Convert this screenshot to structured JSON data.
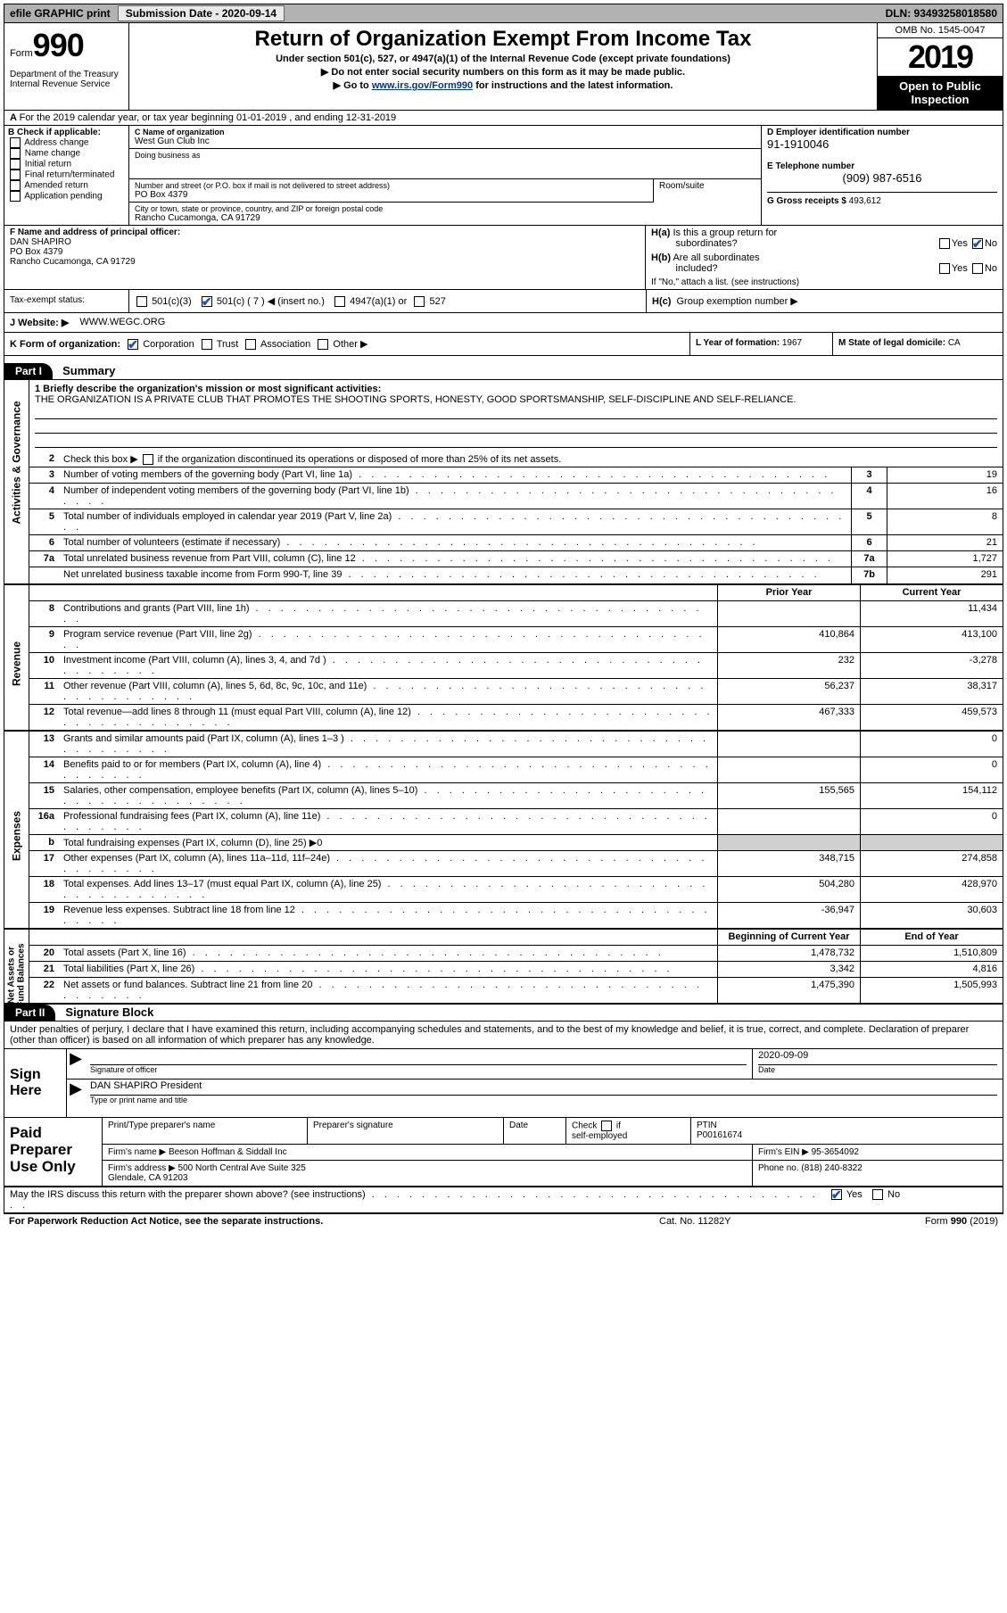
{
  "topbar": {
    "efile_label": "efile GRAPHIC print",
    "submission_label": "Submission Date - 2020-09-14",
    "dln_label": "DLN: 93493258018580"
  },
  "header": {
    "form_word": "Form",
    "form_number": "990",
    "dept": "Department of the Treasury\nInternal Revenue Service",
    "main_title": "Return of Organization Exempt From Income Tax",
    "subtitle": "Under section 501(c), 527, or 4947(a)(1) of the Internal Revenue Code (except private foundations)",
    "note1": "Do not enter social security numbers on this form as it may be made public.",
    "note2_pre": "Go to ",
    "note2_link": "www.irs.gov/Form990",
    "note2_post": " for instructions and the latest information.",
    "omb": "OMB No. 1545-0047",
    "year": "2019",
    "open_public": "Open to Public Inspection"
  },
  "row_a": "For the 2019 calendar year, or tax year beginning 01-01-2019    , and ending 12-31-2019",
  "b": {
    "title": "B Check if applicable:",
    "items": [
      "Address change",
      "Name change",
      "Initial return",
      "Final return/terminated",
      "Amended return",
      "Application pending"
    ]
  },
  "c": {
    "name_label": "C Name of organization",
    "name": "West Gun Club Inc",
    "dba_label": "Doing business as",
    "dba": "",
    "addr_label": "Number and street (or P.O. box if mail is not delivered to street address)",
    "room_label": "Room/suite",
    "addr": "PO Box 4379",
    "city_label": "City or town, state or province, country, and ZIP or foreign postal code",
    "city": "Rancho Cucamonga, CA  91729"
  },
  "d": {
    "ein_label": "D Employer identification number",
    "ein": "91-1910046",
    "phone_label": "E Telephone number",
    "phone": "(909) 987-6516",
    "gross_label": "G Gross receipts $",
    "gross": "493,612"
  },
  "f": {
    "label": "F  Name and address of principal officer:",
    "name": "DAN SHAPIRO",
    "addr1": "PO Box 4379",
    "addr2": "Rancho Cucamonga, CA  91729"
  },
  "h": {
    "a_label": "H(a)  Is this a group return for subordinates?",
    "b_label": "H(b)  Are all subordinates included?",
    "b_note": "If \"No,\" attach a list. (see instructions)",
    "c_label": "H(c)  Group exemption number ▶",
    "yes": "Yes",
    "no": "No"
  },
  "tax_status": {
    "label": "Tax-exempt status:",
    "c3": "501(c)(3)",
    "c_other": "501(c) ( 7 ) ◀ (insert no.)",
    "a1": "4947(a)(1) or",
    "527": "527"
  },
  "j": {
    "label": "J   Website: ▶",
    "value": "WWW.WEGC.ORG"
  },
  "k": {
    "label": "K Form of organization:",
    "corp": "Corporation",
    "trust": "Trust",
    "assoc": "Association",
    "other": "Other ▶"
  },
  "l": {
    "label": "L Year of formation:",
    "value": "1967"
  },
  "m": {
    "label": "M State of legal domicile:",
    "value": "CA"
  },
  "part1": {
    "num": "Part I",
    "title": "Summary"
  },
  "briefly": {
    "q": "1  Briefly describe the organization's mission or most significant activities:",
    "a": "THE ORGANIZATION IS A PRIVATE CLUB THAT PROMOTES THE SHOOTING SPORTS, HONESTY, GOOD SPORTSMANSHIP, SELF-DISCIPLINE AND SELF-RELIANCE."
  },
  "line2": "Check this box ▶        if the organization discontinued its operations or disposed of more than 25% of its net assets.",
  "activities_rows": [
    {
      "n": "3",
      "d": "Number of voting members of the governing body (Part VI, line 1a)",
      "box": "3",
      "v": "19"
    },
    {
      "n": "4",
      "d": "Number of independent voting members of the governing body (Part VI, line 1b)",
      "box": "4",
      "v": "16"
    },
    {
      "n": "5",
      "d": "Total number of individuals employed in calendar year 2019 (Part V, line 2a)",
      "box": "5",
      "v": "8"
    },
    {
      "n": "6",
      "d": "Total number of volunteers (estimate if necessary)",
      "box": "6",
      "v": "21"
    },
    {
      "n": "7a",
      "d": "Total unrelated business revenue from Part VIII, column (C), line 12",
      "box": "7a",
      "v": "1,727"
    },
    {
      "n": "",
      "d": "Net unrelated business taxable income from Form 990-T, line 39",
      "box": "7b",
      "v": "291"
    }
  ],
  "rev_hdr": {
    "prior": "Prior Year",
    "current": "Current Year"
  },
  "revenue_rows": [
    {
      "n": "8",
      "d": "Contributions and grants (Part VIII, line 1h)",
      "p": "",
      "c": "11,434"
    },
    {
      "n": "9",
      "d": "Program service revenue (Part VIII, line 2g)",
      "p": "410,864",
      "c": "413,100"
    },
    {
      "n": "10",
      "d": "Investment income (Part VIII, column (A), lines 3, 4, and 7d )",
      "p": "232",
      "c": "-3,278"
    },
    {
      "n": "11",
      "d": "Other revenue (Part VIII, column (A), lines 5, 6d, 8c, 9c, 10c, and 11e)",
      "p": "56,237",
      "c": "38,317"
    },
    {
      "n": "12",
      "d": "Total revenue—add lines 8 through 11 (must equal Part VIII, column (A), line 12)",
      "p": "467,333",
      "c": "459,573"
    }
  ],
  "expense_rows": [
    {
      "n": "13",
      "d": "Grants and similar amounts paid (Part IX, column (A), lines 1–3 )",
      "p": "",
      "c": "0"
    },
    {
      "n": "14",
      "d": "Benefits paid to or for members (Part IX, column (A), line 4)",
      "p": "",
      "c": "0"
    },
    {
      "n": "15",
      "d": "Salaries, other compensation, employee benefits (Part IX, column (A), lines 5–10)",
      "p": "155,565",
      "c": "154,112"
    },
    {
      "n": "16a",
      "d": "Professional fundraising fees (Part IX, column (A), line 11e)",
      "p": "",
      "c": "0"
    },
    {
      "n": "b",
      "d": "Total fundraising expenses (Part IX, column (D), line 25) ▶0",
      "p": "gray",
      "c": "gray"
    },
    {
      "n": "17",
      "d": "Other expenses (Part IX, column (A), lines 11a–11d, 11f–24e)",
      "p": "348,715",
      "c": "274,858"
    },
    {
      "n": "18",
      "d": "Total expenses. Add lines 13–17 (must equal Part IX, column (A), line 25)",
      "p": "504,280",
      "c": "428,970"
    },
    {
      "n": "19",
      "d": "Revenue less expenses. Subtract line 18 from line 12",
      "p": "-36,947",
      "c": "30,603"
    }
  ],
  "net_hdr": {
    "b": "Beginning of Current Year",
    "e": "End of Year"
  },
  "net_rows": [
    {
      "n": "20",
      "d": "Total assets (Part X, line 16)",
      "p": "1,478,732",
      "c": "1,510,809"
    },
    {
      "n": "21",
      "d": "Total liabilities (Part X, line 26)",
      "p": "3,342",
      "c": "4,816"
    },
    {
      "n": "22",
      "d": "Net assets or fund balances. Subtract line 21 from line 20",
      "p": "1,475,390",
      "c": "1,505,993"
    }
  ],
  "part2": {
    "num": "Part II",
    "title": "Signature Block"
  },
  "sig": {
    "decl": "Under penalties of perjury, I declare that I have examined this return, including accompanying schedules and statements, and to the best of my knowledge and belief, it is true, correct, and complete. Declaration of preparer (other than officer) is based on all information of which preparer has any knowledge.",
    "sign_here": "Sign Here",
    "officer_lbl": "Signature of officer",
    "date_lbl": "Date",
    "date_val": "2020-09-09",
    "name": "DAN SHAPIRO  President",
    "name_lbl": "Type or print name and title"
  },
  "prep": {
    "label": "Paid Preparer Use Only",
    "print_lbl": "Print/Type preparer's name",
    "sig_lbl": "Preparer's signature",
    "date_lbl": "Date",
    "check_lbl": "Check          if self-employed",
    "ptin_lbl": "PTIN",
    "ptin": "P00161674",
    "firm_name_lbl": "Firm's name    ▶",
    "firm_name": "Beeson Hoffman & Siddall Inc",
    "firm_ein_lbl": "Firm's EIN ▶",
    "firm_ein": "95-3654092",
    "firm_addr_lbl": "Firm's address ▶",
    "firm_addr": "500 North Central Ave Suite 325\nGlendale, CA  91203",
    "phone_lbl": "Phone no.",
    "phone": "(818) 240-8322"
  },
  "discuss": {
    "q": "May the IRS discuss this return with the preparer shown above? (see instructions)",
    "yes": "Yes",
    "no": "No"
  },
  "footer": {
    "l": "For Paperwork Reduction Act Notice, see the separate instructions.",
    "c": "Cat. No. 11282Y",
    "r": "Form 990 (2019)"
  }
}
